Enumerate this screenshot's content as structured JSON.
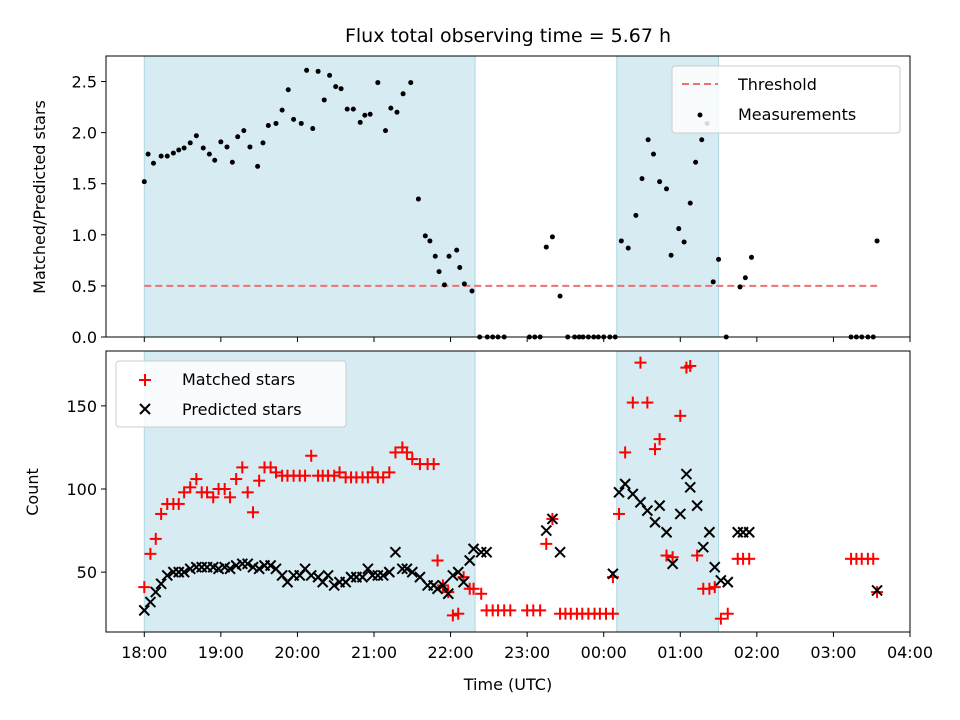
{
  "chart_data": [
    {
      "type": "scatter",
      "title": "Flux total observing time = 5.67 h",
      "xlabel": "",
      "ylabel": "Matched/Predicted stars",
      "ylim": [
        0,
        2.75
      ],
      "yticks": [
        "0.0",
        "0.5",
        "1.0",
        "1.5",
        "2.0",
        "2.5"
      ],
      "grid": false,
      "legend_position": "top-right",
      "shaded_intervals_hours": [
        [
          0.0,
          4.32
        ],
        [
          6.17,
          7.5
        ]
      ],
      "threshold": {
        "name": "Threshold",
        "value": 0.5,
        "color": "#f07070"
      },
      "series": [
        {
          "name": "Measurements",
          "color": "#000000",
          "x": [
            0.0,
            0.05,
            0.12,
            0.22,
            0.3,
            0.38,
            0.45,
            0.52,
            0.6,
            0.68,
            0.77,
            0.85,
            0.92,
            1.0,
            1.08,
            1.15,
            1.22,
            1.3,
            1.38,
            1.48,
            1.55,
            1.62,
            1.72,
            1.8,
            1.88,
            1.95,
            2.05,
            2.12,
            2.2,
            2.27,
            2.35,
            2.42,
            2.5,
            2.57,
            2.65,
            2.73,
            2.82,
            2.88,
            2.95,
            3.05,
            3.15,
            3.22,
            3.3,
            3.38,
            3.48,
            3.58,
            3.67,
            3.73,
            3.8,
            3.85,
            3.92,
            3.98,
            4.08,
            4.12,
            4.18,
            4.28,
            4.38,
            4.48,
            4.55,
            4.62,
            4.7,
            5.03,
            5.1,
            5.17,
            5.25,
            5.33,
            5.43,
            5.53,
            5.62,
            5.68,
            5.73,
            5.8,
            5.87,
            5.93,
            6.0,
            6.08,
            6.15,
            6.23,
            6.32,
            6.42,
            6.5,
            6.58,
            6.65,
            6.73,
            6.82,
            6.88,
            6.98,
            7.05,
            7.13,
            7.2,
            7.28,
            7.35,
            7.43,
            7.5,
            7.6,
            7.78,
            7.85,
            7.93,
            9.23,
            9.3,
            9.37,
            9.45,
            9.52,
            9.57
          ],
          "y": [
            1.52,
            1.79,
            1.7,
            1.77,
            1.77,
            1.8,
            1.83,
            1.85,
            1.9,
            1.97,
            1.85,
            1.79,
            1.73,
            1.91,
            1.86,
            1.71,
            1.96,
            2.02,
            1.86,
            1.67,
            1.9,
            2.07,
            2.09,
            2.22,
            2.42,
            2.13,
            2.09,
            2.61,
            2.04,
            2.6,
            2.32,
            2.56,
            2.45,
            2.43,
            2.23,
            2.23,
            2.1,
            2.17,
            2.18,
            2.49,
            2.02,
            2.24,
            2.2,
            2.38,
            2.49,
            1.35,
            0.99,
            0.94,
            0.79,
            0.64,
            0.51,
            0.79,
            0.85,
            0.68,
            0.52,
            0.45,
            0.0,
            0.0,
            0.0,
            0.0,
            0.0,
            0.0,
            0.0,
            0.0,
            0.88,
            0.98,
            0.4,
            0.0,
            0.0,
            0.0,
            0.0,
            0.0,
            0.0,
            0.0,
            0.0,
            0.0,
            0.0,
            0.94,
            0.87,
            1.19,
            1.55,
            1.93,
            1.79,
            1.52,
            1.45,
            0.8,
            1.06,
            0.93,
            1.31,
            1.71,
            1.93,
            2.09,
            0.54,
            0.76,
            0.0,
            0.49,
            0.58,
            0.78,
            0.0,
            0.0,
            0.0,
            0.0,
            0.0,
            0.94
          ]
        }
      ]
    },
    {
      "type": "scatter",
      "title": "",
      "xlabel": "Time (UTC)",
      "ylabel": "Count",
      "ylim": [
        14,
        183
      ],
      "yticks": [
        "50",
        "100",
        "150"
      ],
      "x_range_hours": [
        -0.5,
        10.0
      ],
      "x_start_time": "18:00",
      "xtick_labels": [
        "18:00",
        "19:00",
        "20:00",
        "21:00",
        "22:00",
        "23:00",
        "00:00",
        "01:00",
        "02:00",
        "03:00",
        "04:00"
      ],
      "grid": false,
      "legend_position": "top-left",
      "shaded_intervals_hours": [
        [
          0.0,
          4.32
        ],
        [
          6.17,
          7.5
        ]
      ],
      "series": [
        {
          "name": "Matched stars",
          "marker": "+",
          "color": "#ff0000",
          "x": [
            0.0,
            0.08,
            0.15,
            0.22,
            0.3,
            0.38,
            0.45,
            0.52,
            0.6,
            0.68,
            0.75,
            0.82,
            0.9,
            0.97,
            1.05,
            1.12,
            1.2,
            1.28,
            1.35,
            1.42,
            1.5,
            1.57,
            1.65,
            1.72,
            1.8,
            1.87,
            1.95,
            2.03,
            2.1,
            2.18,
            2.27,
            2.33,
            2.4,
            2.48,
            2.55,
            2.63,
            2.7,
            2.77,
            2.85,
            2.92,
            2.98,
            3.05,
            3.12,
            3.2,
            3.28,
            3.37,
            3.43,
            3.5,
            3.6,
            3.7,
            3.78,
            3.83,
            3.9,
            3.97,
            4.03,
            4.1,
            4.17,
            4.25,
            4.3,
            4.4,
            4.47,
            4.55,
            4.62,
            4.7,
            4.78,
            5.0,
            5.08,
            5.17,
            5.25,
            5.33,
            5.43,
            5.5,
            5.57,
            5.65,
            5.72,
            5.8,
            5.88,
            5.95,
            6.03,
            6.12,
            6.12,
            6.2,
            6.28,
            6.38,
            6.48,
            6.57,
            6.67,
            6.73,
            6.82,
            6.9,
            7.0,
            7.08,
            7.13,
            7.22,
            7.3,
            7.38,
            7.45,
            7.53,
            7.62,
            7.75,
            7.82,
            7.9,
            9.23,
            9.3,
            9.37,
            9.45,
            9.52,
            9.57
          ],
          "y": [
            41,
            61,
            70,
            85,
            91,
            91,
            91,
            98,
            101,
            106,
            98,
            98,
            95,
            100,
            100,
            95,
            106,
            113,
            98,
            86,
            105,
            113,
            113,
            110,
            108,
            108,
            108,
            108,
            108,
            120,
            108,
            108,
            108,
            108,
            110,
            107,
            107,
            107,
            107,
            107,
            110,
            107,
            107,
            110,
            122,
            125,
            122,
            118,
            115,
            115,
            115,
            57,
            42,
            38,
            24,
            25,
            47,
            40,
            40,
            37,
            27,
            27,
            27,
            27,
            27,
            27,
            27,
            27,
            67,
            82,
            25,
            25,
            25,
            25,
            25,
            25,
            25,
            25,
            25,
            25,
            47,
            85,
            122,
            152,
            176,
            152,
            124,
            130,
            60,
            59,
            144,
            173,
            174,
            60,
            40,
            40,
            41,
            22,
            25,
            58,
            58,
            58,
            58,
            58,
            58,
            58,
            58,
            38
          ],
          "plotted_y_fix": true
        },
        {
          "name": "Predicted stars",
          "marker": "x",
          "color": "#000000",
          "x": [
            0.0,
            0.08,
            0.15,
            0.22,
            0.3,
            0.38,
            0.45,
            0.52,
            0.6,
            0.68,
            0.75,
            0.82,
            0.9,
            0.97,
            1.05,
            1.12,
            1.2,
            1.28,
            1.35,
            1.42,
            1.5,
            1.57,
            1.65,
            1.72,
            1.8,
            1.87,
            1.95,
            2.03,
            2.1,
            2.18,
            2.27,
            2.33,
            2.4,
            2.48,
            2.55,
            2.63,
            2.7,
            2.77,
            2.85,
            2.92,
            2.98,
            3.05,
            3.12,
            3.2,
            3.28,
            3.37,
            3.43,
            3.5,
            3.6,
            3.7,
            3.78,
            3.83,
            3.9,
            3.97,
            4.03,
            4.1,
            4.17,
            4.25,
            4.3,
            4.4,
            4.47,
            5.25,
            5.33,
            5.43,
            6.12,
            6.2,
            6.28,
            6.38,
            6.48,
            6.57,
            6.67,
            6.73,
            6.82,
            6.9,
            7.0,
            7.08,
            7.13,
            7.22,
            7.3,
            7.38,
            7.45,
            7.53,
            7.62,
            7.75,
            7.82,
            7.9,
            9.57
          ],
          "y": [
            27,
            32,
            38,
            43,
            48,
            50,
            50,
            50,
            52,
            53,
            53,
            53,
            53,
            52,
            53,
            52,
            54,
            55,
            55,
            53,
            52,
            54,
            54,
            52,
            48,
            44,
            48,
            48,
            52,
            48,
            47,
            44,
            48,
            42,
            44,
            44,
            47,
            47,
            47,
            52,
            48,
            48,
            48,
            50,
            62,
            52,
            52,
            50,
            47,
            42,
            42,
            40,
            42,
            37,
            48,
            50,
            44,
            57,
            64,
            62,
            62,
            75,
            82,
            62,
            49,
            98,
            103,
            97,
            92,
            87,
            80,
            90,
            74,
            55,
            85,
            109,
            101,
            90,
            65,
            74,
            53,
            45,
            44,
            74,
            74,
            74,
            39
          ]
        }
      ]
    }
  ]
}
